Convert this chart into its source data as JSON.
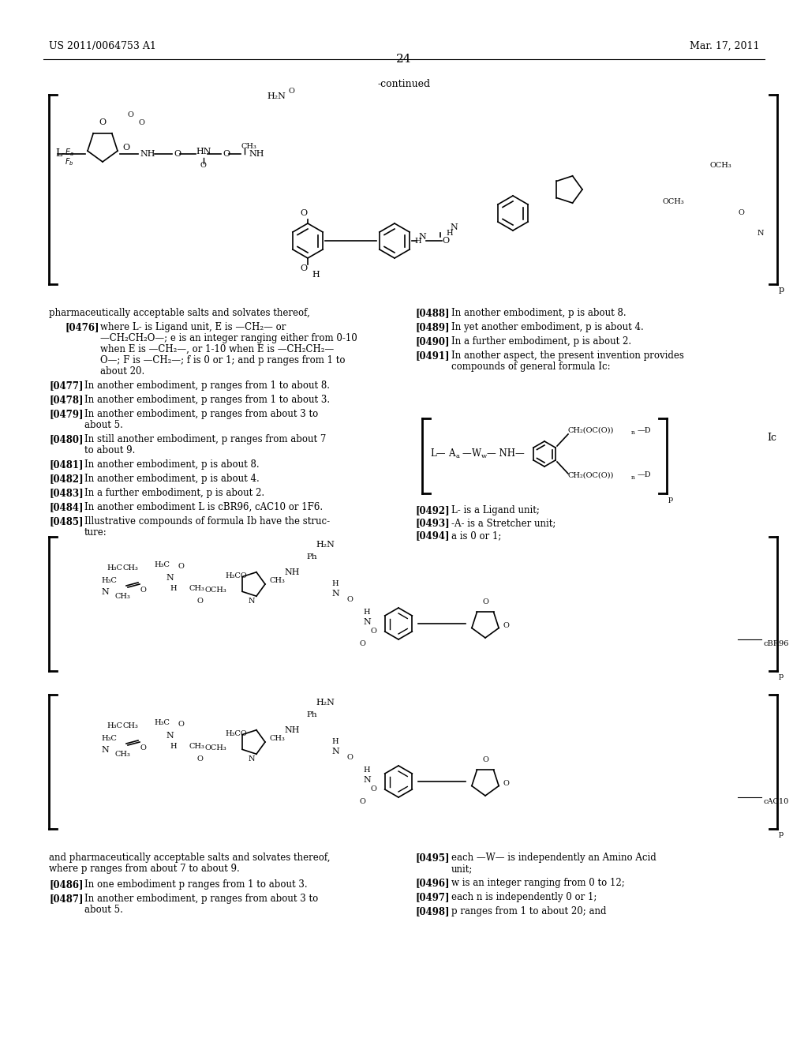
{
  "page_header_left": "US 2011/0064753 A1",
  "page_header_right": "Mar. 17, 2011",
  "page_number": "24",
  "continued_label": "-continued",
  "background_color": "#ffffff",
  "text_color": "#000000",
  "body_text": [
    {
      "tag": "[0476]",
      "indent": true,
      "text": "where L- is Ligand unit, E is —CH₂— or —CH₂CH₂O—; e is an integer ranging either from 0-10 when E is —CH₂—, or 1-10 when E is —CH₂CH₂—O—; F is —CH₂—; f is 0 or 1; and p ranges from 1 to about 20."
    },
    {
      "tag": "[0477]",
      "indent": false,
      "text": "In another embodiment, p ranges from 1 to about 8."
    },
    {
      "tag": "[0478]",
      "indent": false,
      "text": "In another embodiment, p ranges from 1 to about 3."
    },
    {
      "tag": "[0479]",
      "indent": false,
      "text": "In another embodiment, p ranges from about 3 to about 5."
    },
    {
      "tag": "[0480]",
      "indent": false,
      "text": "In still another embodiment, p ranges from about 7 to about 9."
    },
    {
      "tag": "[0481]",
      "indent": false,
      "text": "In another embodiment, p is about 8."
    },
    {
      "tag": "[0482]",
      "indent": false,
      "text": "In another embodiment, p is about 4."
    },
    {
      "tag": "[0483]",
      "indent": false,
      "text": "In a further embodiment, p is about 2."
    },
    {
      "tag": "[0484]",
      "indent": false,
      "text": "In another embodiment L is cBR96, cAC10 or 1F6."
    },
    {
      "tag": "[0485]",
      "indent": false,
      "text": "Illustrative compounds of formula Ib have the structure:"
    },
    {
      "tag": "preamble",
      "indent": false,
      "text": "pharmaceutically acceptable salts and solvates thereof,"
    }
  ],
  "body_text_right": [
    {
      "tag": "[0488]",
      "text": "In another embodiment, p is about 8."
    },
    {
      "tag": "[0489]",
      "text": "In yet another embodiment, p is about 4."
    },
    {
      "tag": "[0490]",
      "text": "In a further embodiment, p is about 2."
    },
    {
      "tag": "[0491]",
      "text": "In another aspect, the present invention provides compounds of general formula Ic:"
    },
    {
      "tag": "[0492]",
      "text": "L- is a Ligand unit;"
    },
    {
      "tag": "[0493]",
      "text": "-A- is a Stretcher unit;"
    },
    {
      "tag": "[0494]",
      "text": "a is 0 or 1;"
    },
    {
      "tag": "[0495]",
      "text": "each —W— is independently an Amino Acid unit;"
    },
    {
      "tag": "[0496]",
      "text": "w is an integer ranging from 0 to 12;"
    },
    {
      "tag": "[0497]",
      "text": "each n is independently 0 or 1;"
    },
    {
      "tag": "[0498]",
      "text": "p ranges from 1 to about 20; and"
    }
  ],
  "footer_text_left": [
    "and pharmaceutically acceptable salts and solvates thereof,",
    "where p ranges from about 7 to about 9.",
    "[0486]    In one embodiment p ranges from 1 to about 3.",
    "[0487]    In another embodiment, p ranges from about 3 to about 5."
  ],
  "footer_text_right": [
    "[0495]    each —W— is independently an Amino Acid unit;",
    "[0496]    w is an integer ranging from 0 to 12;",
    "[0497]    each n is independently 0 or 1;",
    "[0498]    p ranges from 1 to about 20; and"
  ]
}
